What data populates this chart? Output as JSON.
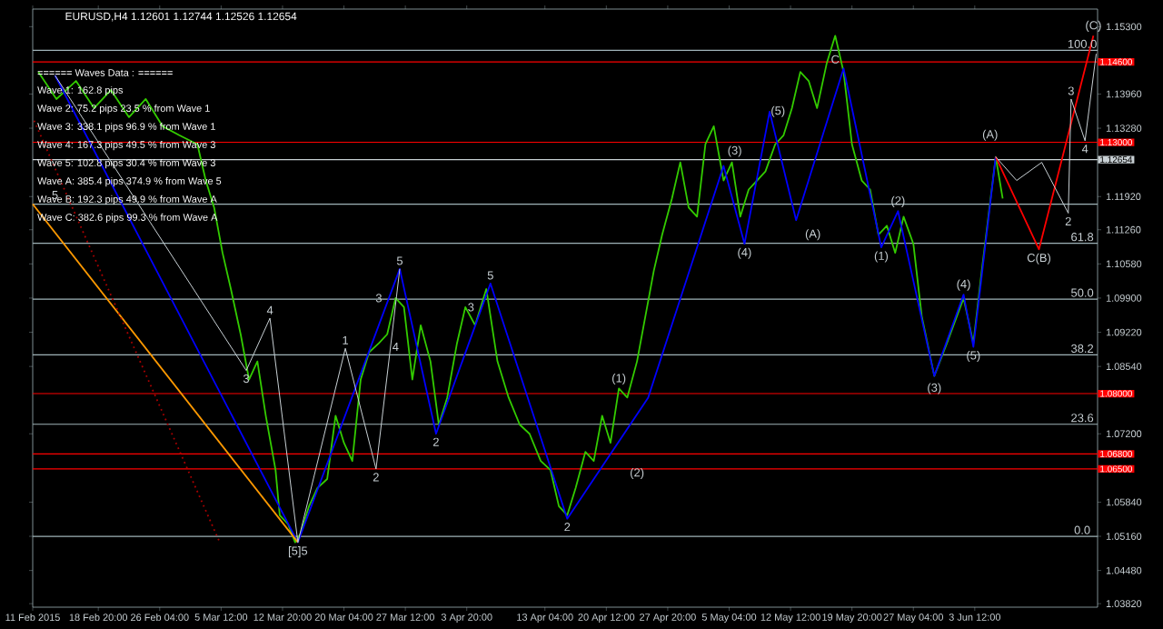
{
  "chart_data": {
    "type": "line",
    "title": "EURUSD,H4  1.12601 1.12744 1.12526 1.12654",
    "xlim": [
      "2015-02-11T00:00",
      "2015-06-18T04:00"
    ],
    "ylim": [
      1.0375,
      1.1565
    ],
    "xticks": [
      {
        "value": "2015-02-11T00:00",
        "label": "11 Feb 2015"
      },
      {
        "value": "2015-02-18T20:00",
        "label": "18 Feb 20:00"
      },
      {
        "value": "2015-02-26T04:00",
        "label": "26 Feb 04:00"
      },
      {
        "value": "2015-03-05T12:00",
        "label": "5 Mar 12:00"
      },
      {
        "value": "2015-03-12T20:00",
        "label": "12 Mar 20:00"
      },
      {
        "value": "2015-03-20T04:00",
        "label": "20 Mar 04:00"
      },
      {
        "value": "2015-03-27T12:00",
        "label": "27 Mar 12:00"
      },
      {
        "value": "2015-04-03T20:00",
        "label": "3 Apr 20:00"
      },
      {
        "value": "2015-04-13T04:00",
        "label": "13 Apr 04:00"
      },
      {
        "value": "2015-04-20T12:00",
        "label": "20 Apr 12:00"
      },
      {
        "value": "2015-04-27T20:00",
        "label": "27 Apr 20:00"
      },
      {
        "value": "2015-05-05T04:00",
        "label": "5 May 04:00"
      },
      {
        "value": "2015-05-12T12:00",
        "label": "12 May 12:00"
      },
      {
        "value": "2015-05-19T20:00",
        "label": "19 May 20:00"
      },
      {
        "value": "2015-05-27T04:00",
        "label": "27 May 04:00"
      },
      {
        "value": "2015-06-03T12:00",
        "label": "3 Jun 12:00"
      }
    ],
    "yticks": [
      {
        "value": 1.153,
        "label": "1.15300"
      },
      {
        "value": 1.1396,
        "label": "1.13960"
      },
      {
        "value": 1.1328,
        "label": "1.13280"
      },
      {
        "value": 1.1192,
        "label": "1.11920"
      },
      {
        "value": 1.1126,
        "label": "1.11260"
      },
      {
        "value": 1.1058,
        "label": "1.10580"
      },
      {
        "value": 1.099,
        "label": "1.09900"
      },
      {
        "value": 1.0922,
        "label": "1.09220"
      },
      {
        "value": 1.0854,
        "label": "1.08540"
      },
      {
        "value": 1.072,
        "label": "1.07200"
      },
      {
        "value": 1.0584,
        "label": "1.05840"
      },
      {
        "value": 1.0516,
        "label": "1.05160"
      },
      {
        "value": 1.0448,
        "label": "1.04480"
      },
      {
        "value": 1.0382,
        "label": "1.03820"
      }
    ],
    "series": [
      {
        "color": "#33cc00",
        "x": [
          "2015-02-11T16:00",
          "2015-02-13T20:00",
          "2015-02-16T04:00",
          "2015-02-18T08:00",
          "2015-02-20T08:00",
          "2015-02-22T12:00",
          "2015-02-24T12:00",
          "2015-02-26T12:00",
          "2015-02-28T12:00",
          "2015-03-02T16:00",
          "2015-03-03T16:00",
          "2015-03-04T16:00",
          "2015-03-05T16:00",
          "2015-03-06T16:00",
          "2015-03-07T20:00",
          "2015-03-08T20:00",
          "2015-03-09T20:00",
          "2015-03-10T20:00",
          "2015-03-12T00:00",
          "2015-03-12T12:00",
          "2015-03-13T12:00",
          "2015-03-14T08:00",
          "2015-03-15T00:00",
          "2015-03-16T00:00",
          "2015-03-17T00:00",
          "2015-03-18T04:00",
          "2015-03-19T04:00",
          "2015-03-20T04:00",
          "2015-03-21T04:00",
          "2015-03-22T04:00",
          "2015-03-23T04:00",
          "2015-03-24T08:00",
          "2015-03-25T08:00",
          "2015-03-26T08:00",
          "2015-03-27T08:00",
          "2015-03-28T08:00",
          "2015-03-29T08:00",
          "2015-03-30T12:00",
          "2015-03-31T12:00",
          "2015-04-01T12:00",
          "2015-04-02T16:00",
          "2015-04-03T16:00",
          "2015-04-04T20:00",
          "2015-04-06T04:00",
          "2015-04-07T12:00",
          "2015-04-08T20:00",
          "2015-04-10T04:00",
          "2015-04-11T08:00",
          "2015-04-12T16:00",
          "2015-04-13T20:00",
          "2015-04-14T20:00",
          "2015-04-15T20:00",
          "2015-04-16T20:00",
          "2015-04-18T00:00",
          "2015-04-19T00:00",
          "2015-04-20T00:00",
          "2015-04-21T00:00",
          "2015-04-22T00:00",
          "2015-04-23T00:00",
          "2015-04-24T04:00",
          "2015-04-25T04:00",
          "2015-04-26T04:00",
          "2015-04-27T04:00",
          "2015-04-28T08:00",
          "2015-04-29T08:00",
          "2015-04-30T08:00",
          "2015-05-01T08:00",
          "2015-05-02T08:00",
          "2015-05-03T08:00",
          "2015-05-04T12:00",
          "2015-05-05T12:00",
          "2015-05-06T12:00",
          "2015-05-07T12:00",
          "2015-05-08T12:00",
          "2015-05-09T12:00",
          "2015-05-10T16:00",
          "2015-05-11T16:00",
          "2015-05-12T16:00",
          "2015-05-13T16:00",
          "2015-05-14T16:00",
          "2015-05-15T16:00",
          "2015-05-16T20:00",
          "2015-05-17T20:00",
          "2015-05-18T20:00",
          "2015-05-19T20:00",
          "2015-05-21T00:00",
          "2015-05-22T00:00",
          "2015-05-23T00:00",
          "2015-05-24T00:00",
          "2015-05-25T00:00",
          "2015-05-26T00:00",
          "2015-05-27T04:00",
          "2015-05-28T04:00",
          "2015-05-29T16:00",
          "2015-05-31T04:00",
          "2015-06-02T04:00",
          "2015-06-03T08:00",
          "2015-06-04T08:00",
          "2015-06-06T00:00",
          "2015-06-06T20:00"
        ],
        "values": [
          1.144,
          1.1386,
          1.1422,
          1.1368,
          1.1404,
          1.135,
          1.1386,
          1.1332,
          1.1314,
          1.1296,
          1.1224,
          1.117,
          1.108,
          1.1008,
          1.0918,
          1.0828,
          1.0864,
          1.0756,
          1.0648,
          1.0558,
          1.054,
          1.0504,
          1.0522,
          1.0576,
          1.0612,
          1.063,
          1.0756,
          1.0702,
          1.0666,
          1.0828,
          1.0882,
          1.09,
          1.0918,
          1.099,
          1.0972,
          1.0828,
          1.0936,
          1.0864,
          1.0738,
          1.0792,
          1.09,
          1.0972,
          1.0936,
          1.1008,
          1.0864,
          1.0792,
          1.0738,
          1.072,
          1.0666,
          1.0648,
          1.0576,
          1.0558,
          1.0612,
          1.0684,
          1.0666,
          1.0756,
          1.0702,
          1.081,
          1.0792,
          1.0864,
          1.0954,
          1.1044,
          1.1116,
          1.1188,
          1.126,
          1.117,
          1.1152,
          1.1296,
          1.1332,
          1.1224,
          1.126,
          1.1152,
          1.1206,
          1.1224,
          1.1242,
          1.1296,
          1.1314,
          1.1368,
          1.144,
          1.1422,
          1.1368,
          1.1458,
          1.1512,
          1.144,
          1.1296,
          1.1224,
          1.1206,
          1.1116,
          1.1134,
          1.108,
          1.1152,
          1.1098,
          1.0954,
          1.0835,
          1.09,
          1.099,
          1.09,
          1.1044,
          1.1271,
          1.1188
        ]
      },
      {
        "color": "#0000ff",
        "x": [
          "2015-02-13T16:00",
          "2015-03-14T16:00",
          "2015-03-26T20:00",
          "2015-03-31T04:00",
          "2015-04-06T16:00",
          "2015-04-15T20:00",
          "2015-04-25T12:00",
          "2015-05-04T12:00",
          "2015-05-07T00:00",
          "2015-05-10T00:00",
          "2015-05-13T04:00",
          "2015-05-18T20:00",
          "2015-05-23T08:00",
          "2015-05-25T08:00",
          "2015-05-29T16:00",
          "2015-06-02T04:00",
          "2015-06-03T08:00",
          "2015-06-06T00:00"
        ],
        "values": [
          1.1433,
          1.0504,
          1.1048,
          1.072,
          1.1019,
          1.0551,
          1.0792,
          1.1253,
          1.1098,
          1.1361,
          1.1145,
          1.1447,
          1.1091,
          1.1163,
          1.0835,
          1.0997,
          1.0893,
          1.1271
        ]
      },
      {
        "color": "#ff0000",
        "x": [
          "2015-06-06T00:00",
          "2015-06-11T04:00",
          "2015-06-17T16:00"
        ],
        "values": [
          1.1271,
          1.1087,
          1.1512
        ]
      },
      {
        "color": "#ff9900",
        "x": [
          "2015-02-11T00:00",
          "2015-03-14T16:00"
        ],
        "values": [
          1.1177,
          1.0504
        ]
      },
      {
        "color": "#aa0000",
        "line_style": "dotted",
        "x": [
          "2015-02-11T04:00",
          "2015-03-05T08:00"
        ],
        "values": [
          1.1343,
          1.0504
        ]
      },
      {
        "color": "#c8d0d4",
        "x": [
          "2015-02-13T16:00",
          "2015-03-08T12:00",
          "2015-03-11T08:00",
          "2015-03-14T16:00",
          "2015-03-20T08:00",
          "2015-03-24T00:00",
          "2015-03-26T20:00"
        ],
        "values": [
          1.1433,
          1.0846,
          1.095,
          1.0504,
          1.089,
          1.065,
          1.1048
        ]
      },
      {
        "color": "#c8d0d4",
        "x": [
          "2015-06-06T00:00",
          "2015-06-08T12:00",
          "2015-06-11T12:00",
          "2015-06-14T16:00",
          "2015-06-15T00:00",
          "2015-06-16T16:00",
          "2015-06-18T00:00"
        ],
        "values": [
          1.1271,
          1.1224,
          1.126,
          1.1159,
          1.1386,
          1.1303,
          1.1476
        ]
      }
    ],
    "ref_lines": [
      {
        "axis": "y",
        "value": 1.146,
        "label": "1.14600",
        "color": "#ff0000"
      },
      {
        "axis": "y",
        "value": 1.13,
        "label": "1.13000",
        "color": "#ff0000"
      },
      {
        "axis": "y",
        "value": 1.12654,
        "label": "1.12654",
        "color": "#c8d0d4"
      },
      {
        "axis": "y",
        "value": 1.08,
        "label": "1.08000",
        "color": "#ff0000"
      },
      {
        "axis": "y",
        "value": 1.068,
        "label": "1.06800",
        "color": "#ff0000"
      },
      {
        "axis": "y",
        "value": 1.065,
        "label": "1.06500",
        "color": "#ff0000"
      },
      {
        "axis": "y",
        "value": 1.1483,
        "color": "#9fb3b8"
      },
      {
        "axis": "y",
        "value": 1.1177,
        "color": "#9fb3b8"
      },
      {
        "axis": "y",
        "value": 1.1099,
        "color": "#9fb3b8"
      },
      {
        "axis": "y",
        "value": 1.0988,
        "color": "#9fb3b8"
      },
      {
        "axis": "y",
        "value": 1.0877,
        "color": "#9fb3b8"
      },
      {
        "axis": "y",
        "value": 1.0739,
        "color": "#9fb3b8"
      },
      {
        "axis": "y",
        "value": 1.0516,
        "color": "#9fb3b8"
      }
    ],
    "annotations": [
      "====== Waves Data : ======",
      "Wave 1: 162.8 pips",
      "Wave 2: 75.2 pips 23.5 % from Wave 1",
      "Wave 3: 338.1 pips 96.9 % from Wave 1",
      "Wave 4: 167.3 pips 49.5 % from Wave 3",
      "Wave 5: 102.8 pips 30.4 % from Wave 3",
      "Wave A: 385.4 pips 374.9 % from Wave 5",
      "Wave B: 192.3 pips 49.9 % from Wave A",
      "Wave C: 382.6 pips 99.3 % from Wave A",
      {
        "text": "100.0",
        "x": "2015-06-16T08:00",
        "y": 1.1483
      },
      {
        "text": "61.8",
        "x": "2015-06-16T08:00",
        "y": 1.1099
      },
      {
        "text": "50.0",
        "x": "2015-06-16T08:00",
        "y": 1.0988
      },
      {
        "text": "38.2",
        "x": "2015-06-16T08:00",
        "y": 1.0877
      },
      {
        "text": "23.6",
        "x": "2015-06-16T08:00",
        "y": 1.0739
      },
      {
        "text": "0.0",
        "x": "2015-06-16T08:00",
        "y": 1.0516
      },
      {
        "text": "[5]5",
        "x": "2015-03-14T16:00",
        "y": 1.0504
      },
      {
        "text": "5",
        "x": "2015-02-13T16:00",
        "y": 1.1195
      },
      {
        "text": "5",
        "x": "2015-03-26T20:00",
        "y": 1.1048
      },
      {
        "text": "5",
        "x": "2015-04-06T16:00",
        "y": 1.1019
      },
      {
        "text": "4",
        "x": "2015-03-11T08:00",
        "y": 1.095
      },
      {
        "text": "3",
        "x": "2015-03-08T12:00",
        "y": 1.0846
      },
      {
        "text": "1",
        "x": "2015-03-20T08:00",
        "y": 1.089
      },
      {
        "text": "3",
        "x": "2015-03-24T08:00",
        "y": 1.099
      },
      {
        "text": "4",
        "x": "2015-03-26T08:00",
        "y": 1.0893
      },
      {
        "text": "2",
        "x": "2015-03-24T00:00",
        "y": 1.065
      },
      {
        "text": "2",
        "x": "2015-03-31T04:00",
        "y": 1.072
      },
      {
        "text": "3",
        "x": "2015-04-04T08:00",
        "y": 1.0972
      },
      {
        "text": "2",
        "x": "2015-04-15T20:00",
        "y": 1.0551
      },
      {
        "text": "(1)",
        "x": "2015-04-22T00:00",
        "y": 1.081
      },
      {
        "text": "(2)",
        "x": "2015-04-24T04:00",
        "y": 1.0641
      },
      {
        "text": "(3)",
        "x": "2015-05-05T20:00",
        "y": 1.1282
      },
      {
        "text": "(4)",
        "x": "2015-05-07T00:00",
        "y": 1.1098
      },
      {
        "text": "(5)",
        "x": "2015-05-11T00:00",
        "y": 1.1361
      },
      {
        "text": "C",
        "x": "2015-05-17T20:00",
        "y": 1.1465
      },
      {
        "text": "(A)",
        "x": "2015-05-15T04:00",
        "y": 1.1116
      },
      {
        "text": "(1)",
        "x": "2015-05-23T08:00",
        "y": 1.1091
      },
      {
        "text": "(2)",
        "x": "2015-05-25T08:00",
        "y": 1.1163
      },
      {
        "text": "(3)",
        "x": "2015-05-29T16:00",
        "y": 1.081
      },
      {
        "text": "(4)",
        "x": "2015-06-02T04:00",
        "y": 1.0997
      },
      {
        "text": "(5)",
        "x": "2015-06-03T08:00",
        "y": 1.0893
      },
      {
        "text": "(A)",
        "x": "2015-06-05T08:00",
        "y": 1.1314
      },
      {
        "text": "C(B)",
        "x": "2015-06-11T04:00",
        "y": 1.1087
      },
      {
        "text": "(C)",
        "x": "2015-06-17T16:00",
        "y": 1.1512
      },
      {
        "text": "3",
        "x": "2015-06-15T00:00",
        "y": 1.1386
      },
      {
        "text": "4",
        "x": "2015-06-16T16:00",
        "y": 1.1303
      },
      {
        "text": "2",
        "x": "2015-06-14T16:00",
        "y": 1.1159
      }
    ]
  }
}
